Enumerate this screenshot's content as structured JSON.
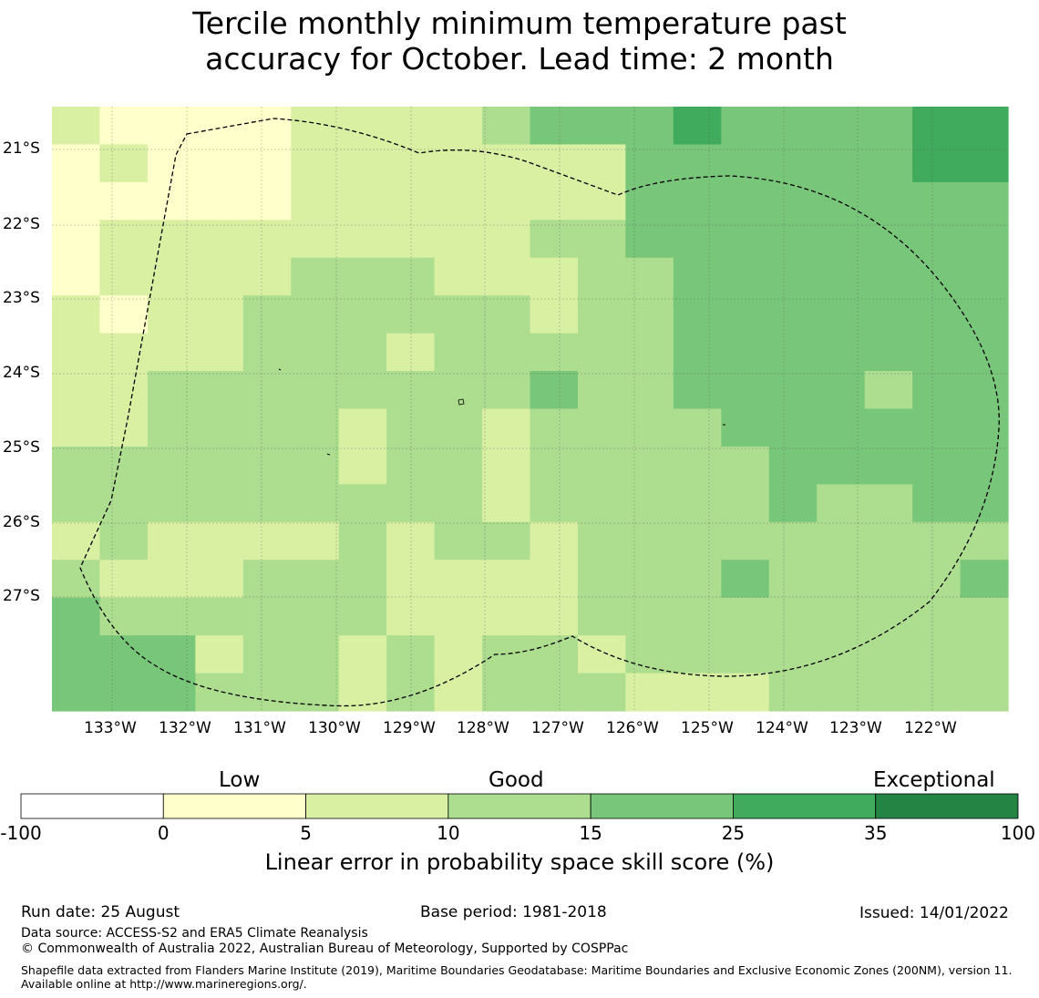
{
  "title_line1": "Tercile monthly minimum temperature past",
  "title_line2": "accuracy for October. Lead time: 2 month",
  "map": {
    "lon_labels": [
      "133°W",
      "132°W",
      "131°W",
      "130°W",
      "129°W",
      "128°W",
      "127°W",
      "126°W",
      "125°W",
      "124°W",
      "123°W",
      "122°W"
    ],
    "lat_labels": [
      "21°S",
      "22°S",
      "23°S",
      "24°S",
      "25°S",
      "26°S",
      "27°S"
    ],
    "grid_rows": [
      [
        2,
        1,
        1,
        1,
        1,
        2,
        2,
        2,
        2,
        3,
        4,
        4,
        4,
        5,
        4,
        4,
        4,
        4,
        5,
        5
      ],
      [
        1,
        2,
        1,
        1,
        1,
        2,
        2,
        2,
        2,
        2,
        2,
        2,
        4,
        4,
        4,
        4,
        4,
        4,
        5,
        5
      ],
      [
        1,
        1,
        1,
        1,
        1,
        2,
        2,
        2,
        2,
        2,
        2,
        2,
        4,
        4,
        4,
        4,
        4,
        4,
        4,
        4
      ],
      [
        1,
        2,
        2,
        2,
        2,
        2,
        2,
        2,
        2,
        2,
        3,
        3,
        4,
        4,
        4,
        4,
        4,
        4,
        4,
        4
      ],
      [
        1,
        2,
        2,
        2,
        2,
        3,
        3,
        3,
        2,
        2,
        2,
        3,
        3,
        4,
        4,
        4,
        4,
        4,
        4,
        4
      ],
      [
        2,
        1,
        2,
        2,
        3,
        3,
        3,
        3,
        3,
        3,
        2,
        3,
        3,
        4,
        4,
        4,
        4,
        4,
        4,
        4
      ],
      [
        2,
        2,
        2,
        2,
        3,
        3,
        3,
        2,
        3,
        3,
        3,
        3,
        3,
        4,
        4,
        4,
        4,
        4,
        4,
        4
      ],
      [
        2,
        2,
        3,
        3,
        3,
        3,
        3,
        3,
        3,
        3,
        4,
        3,
        3,
        4,
        4,
        4,
        4,
        3,
        4,
        4
      ],
      [
        2,
        2,
        3,
        3,
        3,
        3,
        2,
        3,
        3,
        2,
        3,
        3,
        3,
        3,
        4,
        4,
        4,
        4,
        4,
        4
      ],
      [
        3,
        3,
        3,
        3,
        3,
        3,
        2,
        3,
        3,
        2,
        3,
        3,
        3,
        3,
        3,
        4,
        4,
        4,
        4,
        4
      ],
      [
        3,
        3,
        3,
        3,
        3,
        3,
        3,
        3,
        3,
        2,
        3,
        3,
        3,
        3,
        3,
        4,
        3,
        3,
        4,
        4
      ],
      [
        2,
        3,
        2,
        2,
        2,
        2,
        3,
        2,
        3,
        3,
        2,
        3,
        3,
        3,
        3,
        3,
        3,
        3,
        3,
        3
      ],
      [
        3,
        2,
        2,
        2,
        3,
        3,
        3,
        2,
        2,
        2,
        2,
        3,
        3,
        3,
        4,
        3,
        3,
        3,
        3,
        4
      ],
      [
        4,
        3,
        3,
        3,
        3,
        3,
        3,
        2,
        2,
        2,
        2,
        3,
        3,
        3,
        3,
        3,
        3,
        3,
        3,
        3
      ],
      [
        4,
        4,
        4,
        2,
        3,
        3,
        2,
        3,
        2,
        3,
        3,
        2,
        3,
        3,
        3,
        3,
        3,
        3,
        3,
        3
      ],
      [
        4,
        4,
        4,
        3,
        3,
        3,
        2,
        3,
        2,
        3,
        3,
        3,
        2,
        2,
        2,
        3,
        3,
        3,
        3,
        3
      ]
    ]
  },
  "colorbar": {
    "categories": [
      "Low",
      "Good",
      "Exceptional"
    ],
    "ticks": [
      "-100",
      "0",
      "5",
      "10",
      "15",
      "25",
      "35",
      "100"
    ],
    "colors": [
      "#ffffff",
      "#ffffcc",
      "#d9f0a3",
      "#addd8e",
      "#78c679",
      "#41ab5d",
      "#238443"
    ],
    "caption": "Linear error in probability space skill score (%)"
  },
  "footer": {
    "run_date": "Run date: 25 August",
    "base_period": "Base period: 1981-2018",
    "issued": "Issued: 14/01/2022",
    "data_source": "Data source: ACCESS-S2 and ERA5 Climate Reanalysis",
    "copyright": "© Commonwealth of Australia 2022, Australian Bureau of Meteorology, Supported by COSPPac",
    "shapefile": "Shapefile data extracted from Flanders Marine Institute (2019), Maritime Boundaries Geodatabase: Maritime Boundaries and Exclusive Economic Zones (200NM), version 11. Available online at http://www.marineregions.org/."
  }
}
